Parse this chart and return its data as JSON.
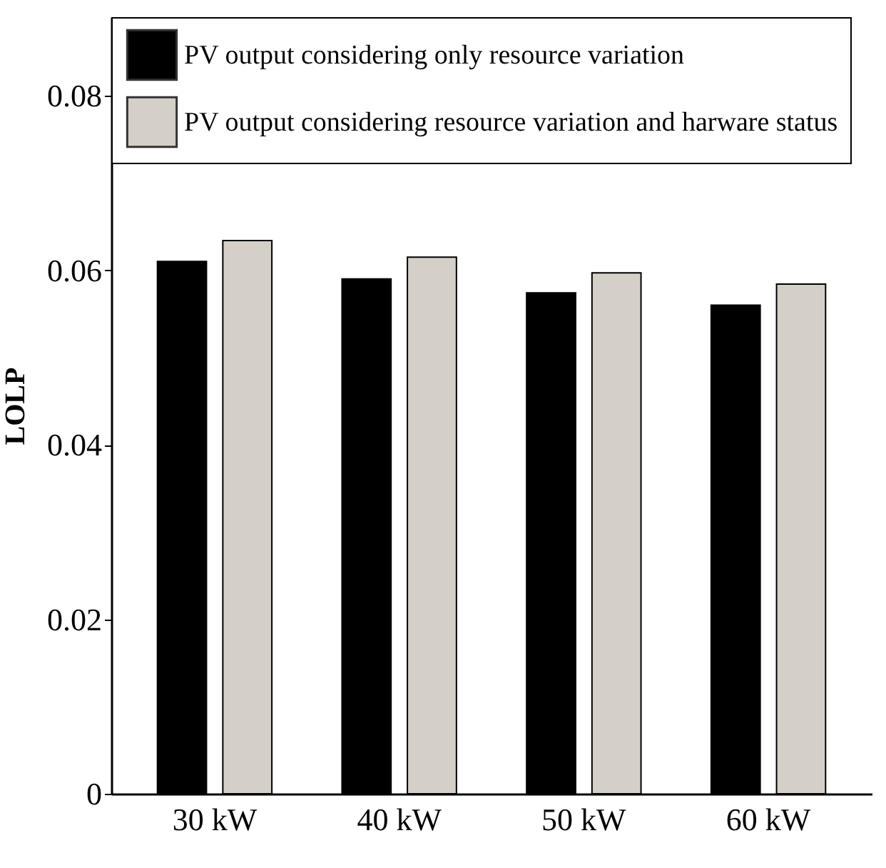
{
  "chart_data": {
    "type": "bar",
    "ylabel": "LOLP",
    "categories": [
      "30 kW",
      "40 kW",
      "50 kW",
      "60 kW"
    ],
    "series": [
      {
        "name": "PV output considering only resource variation",
        "color": "#000000",
        "values": [
          0.061,
          0.059,
          0.0574,
          0.056
        ]
      },
      {
        "name": "PV output considering resource variation and harware status",
        "color": "#d4d0c8",
        "values": [
          0.0634,
          0.0615,
          0.0597,
          0.0584
        ]
      }
    ],
    "ylim": [
      0,
      0.089
    ],
    "yticks": [
      0,
      0.02,
      0.04,
      0.06,
      0.08
    ],
    "grid": false,
    "legend": "top"
  }
}
